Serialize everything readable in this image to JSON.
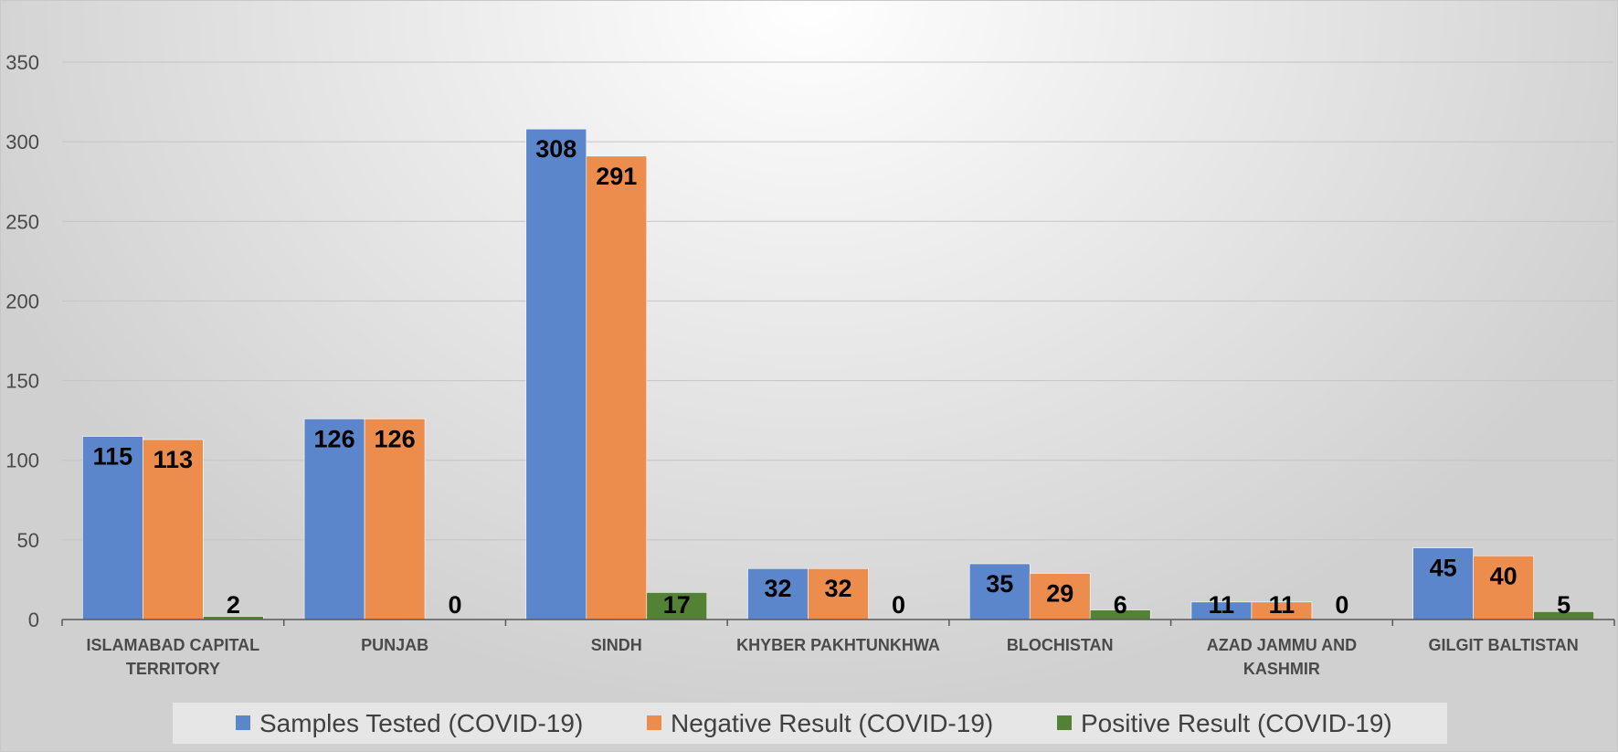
{
  "chart_data": {
    "type": "bar",
    "title": "",
    "xlabel": "",
    "ylabel": "",
    "ylim": [
      0,
      350
    ],
    "yticks": [
      0,
      50,
      100,
      150,
      200,
      250,
      300,
      350
    ],
    "grid": true,
    "legend_position": "bottom",
    "categories": [
      [
        "ISLAMABAD CAPITAL",
        "TERRITORY"
      ],
      [
        "PUNJAB"
      ],
      [
        "SINDH"
      ],
      [
        "KHYBER PAKHTUNKHWA"
      ],
      [
        "BLOCHISTAN"
      ],
      [
        "AZAD JAMMU AND",
        "KASHMIR"
      ],
      [
        "GILGIT BALTISTAN"
      ]
    ],
    "series": [
      {
        "name": "Samples Tested (COVID-19)",
        "color": "#5b86cc",
        "values": [
          115,
          126,
          308,
          32,
          35,
          11,
          45
        ]
      },
      {
        "name": "Negative Result (COVID-19)",
        "color": "#ed8d4d",
        "values": [
          113,
          126,
          291,
          32,
          29,
          11,
          40
        ]
      },
      {
        "name": "Positive Result (COVID-19)",
        "color": "#538135",
        "values": [
          2,
          0,
          17,
          0,
          6,
          0,
          5
        ]
      }
    ]
  }
}
